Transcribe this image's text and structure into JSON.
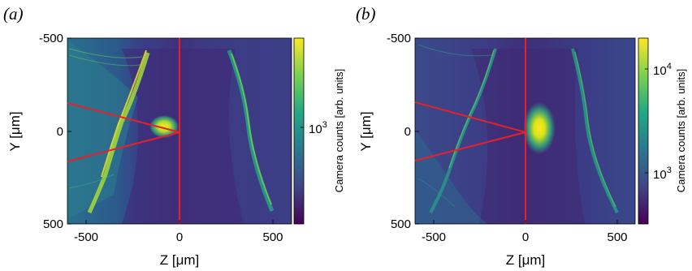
{
  "chart_data": [
    {
      "type": "heatmap",
      "panel_label": "(a)",
      "xlabel": "Z [μm]",
      "ylabel": "Y [μm]",
      "xlim": [
        -600,
        600
      ],
      "ylim": [
        -500,
        500
      ],
      "y_reversed": true,
      "x_ticks": [
        "-500",
        "0",
        "500"
      ],
      "y_ticks": [
        "-500",
        "0",
        "500"
      ],
      "colorbar": {
        "label": "Camera counts [arb. units]",
        "scale": "log",
        "tick_base": "10",
        "tick_exponent": "3"
      },
      "overlay_lines": {
        "vertical_z": 0,
        "cone_apex": [
          0,
          0
        ],
        "cone_left_ends": [
          [
            -600,
            -160
          ],
          [
            -600,
            160
          ]
        ]
      },
      "colors": {
        "overlay": "#e8202a"
      }
    },
    {
      "type": "heatmap",
      "panel_label": "(b)",
      "xlabel": "Z [μm]",
      "ylabel": "Y [μm]",
      "xlim": [
        -600,
        600
      ],
      "ylim": [
        -500,
        500
      ],
      "y_reversed": true,
      "x_ticks": [
        "-500",
        "0",
        "500"
      ],
      "y_ticks": [
        "-500",
        "0",
        "500"
      ],
      "colorbar": {
        "label": "Camera counts [arb. units]",
        "scale": "log",
        "tick_base_1": "10",
        "tick_exponent_1": "4",
        "tick_base_2": "10",
        "tick_exponent_2": "3"
      },
      "overlay_lines": {
        "vertical_z": 0,
        "cone_apex": [
          0,
          0
        ],
        "cone_left_ends": [
          [
            -600,
            -160
          ],
          [
            -600,
            160
          ]
        ]
      },
      "colors": {
        "overlay": "#e8202a"
      }
    }
  ]
}
